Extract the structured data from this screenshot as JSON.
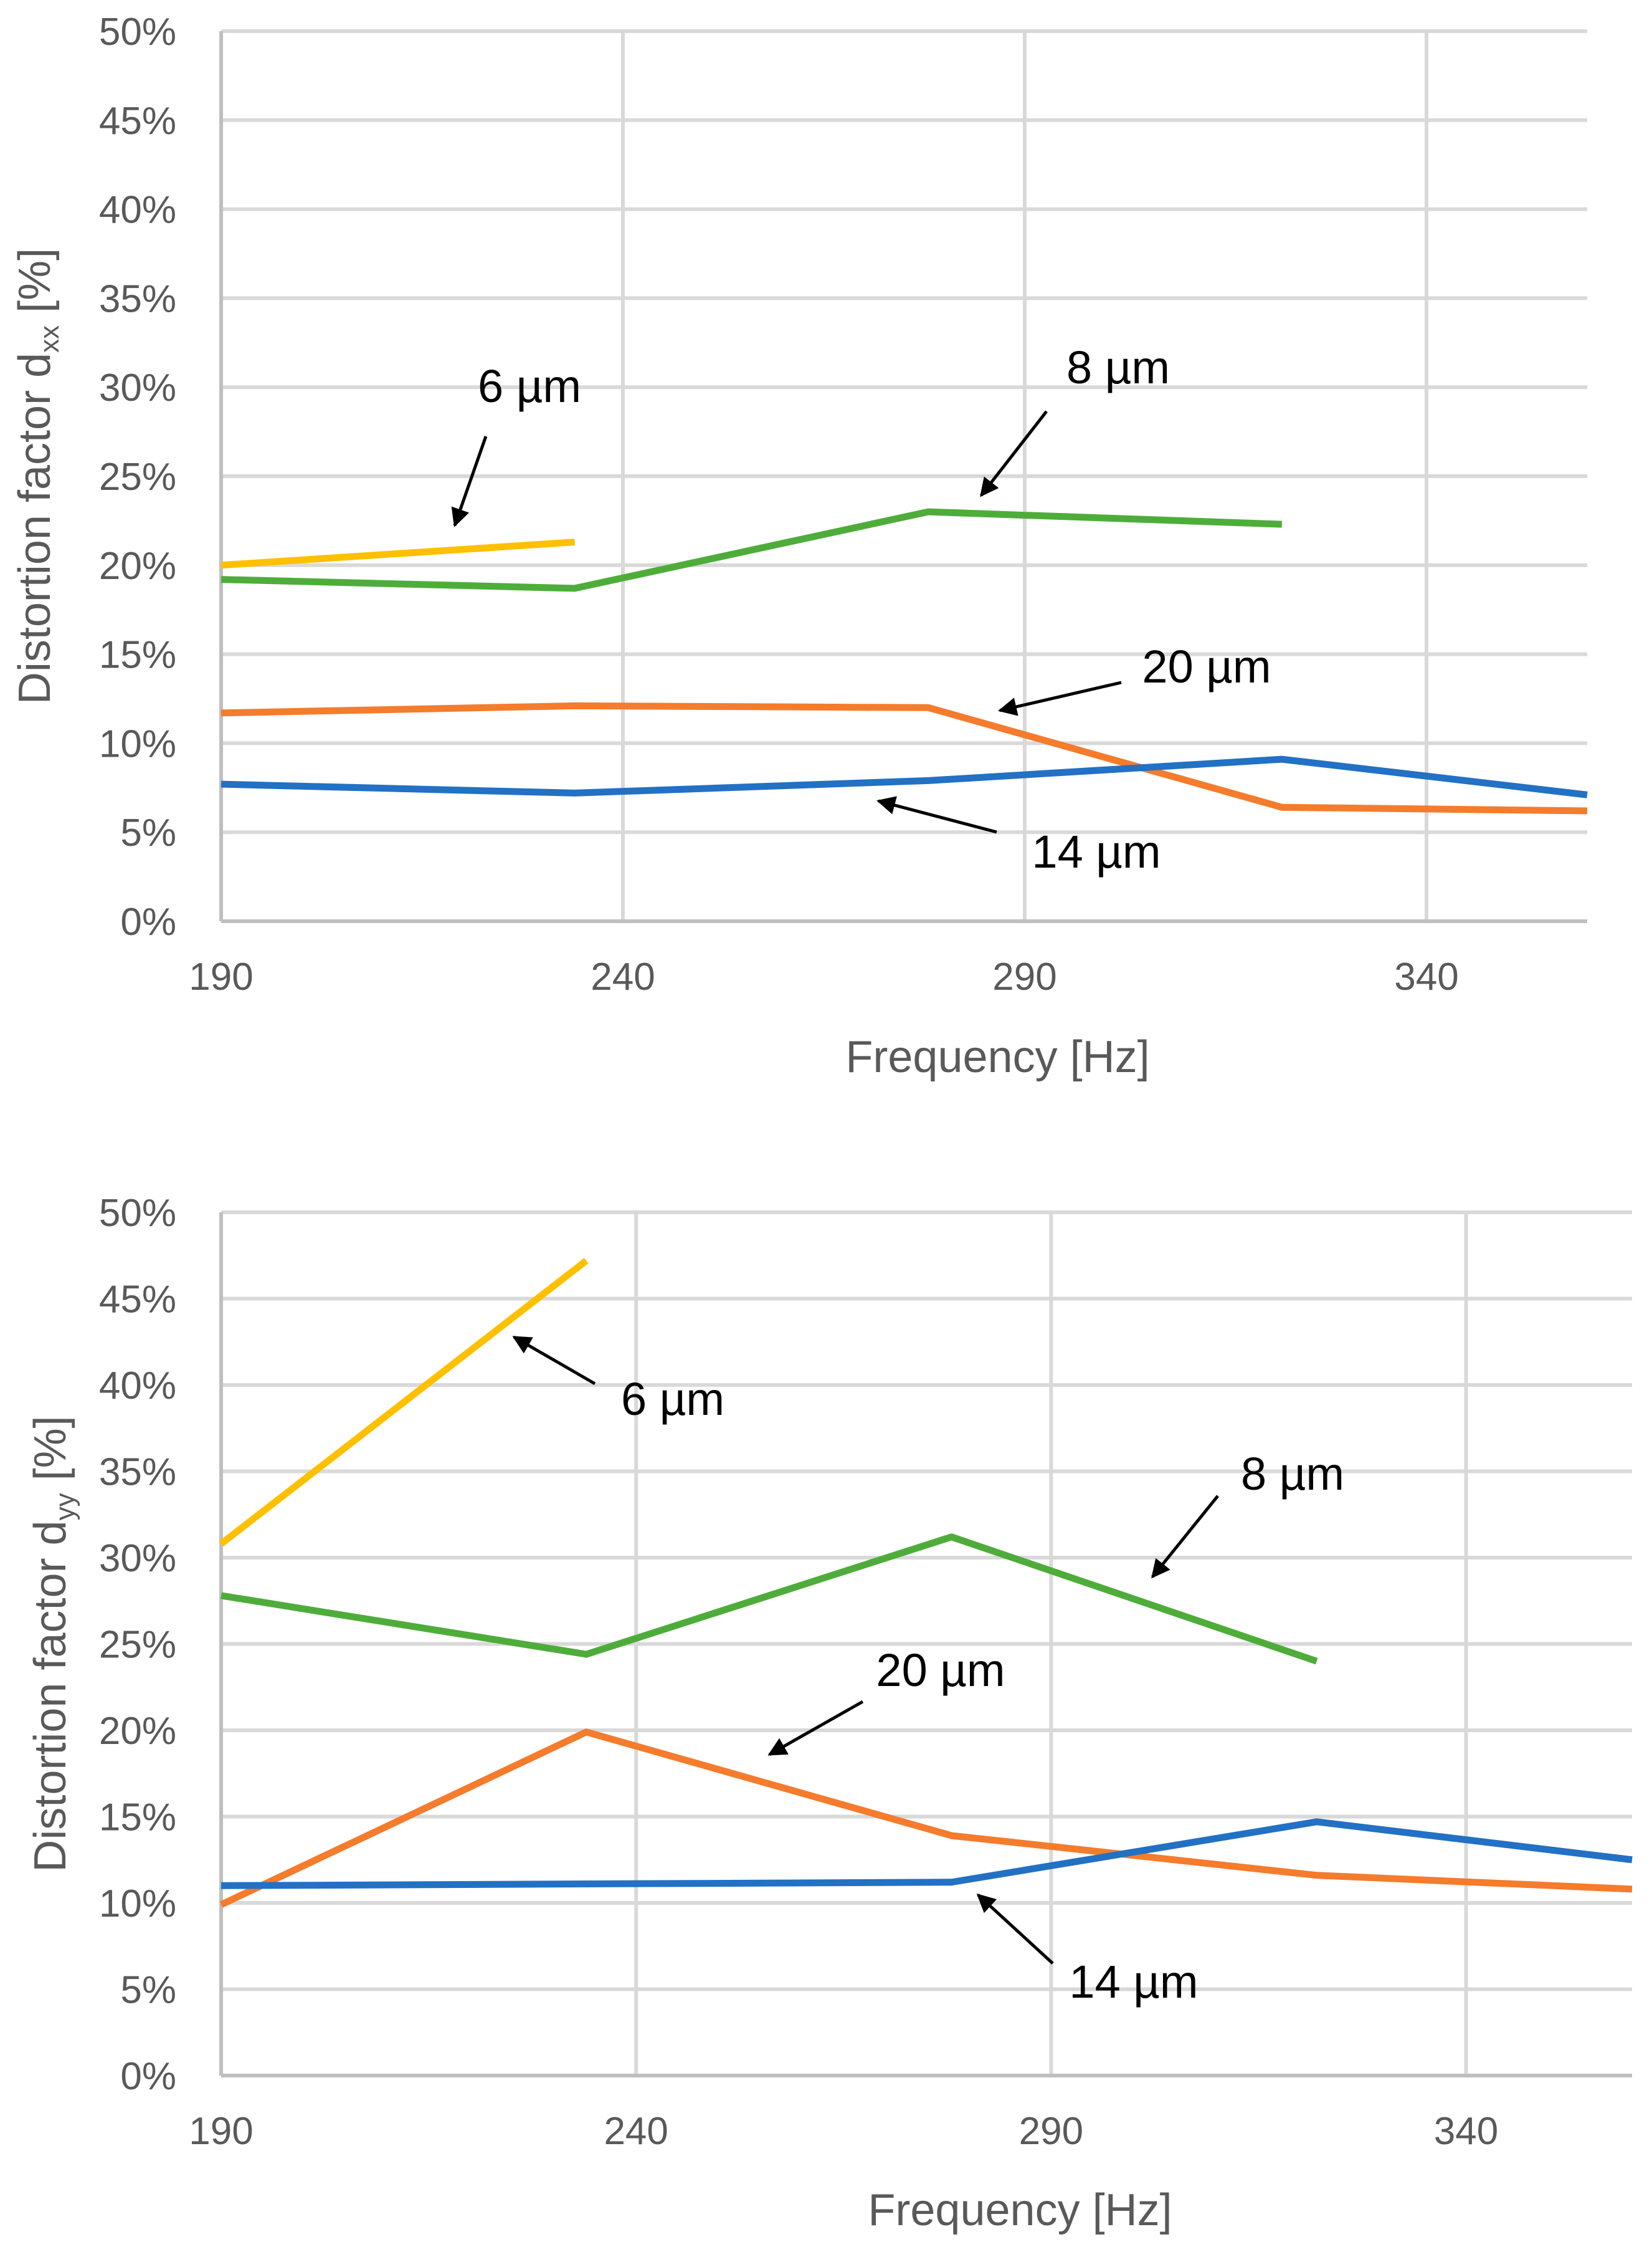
{
  "chart_data": [
    {
      "type": "line",
      "xlabel": "Frequency [Hz]",
      "ylabel": "Distortion factor d",
      "ylabel_subscript": "xx",
      "ylabel_suffix": " [%]",
      "xlim": [
        190,
        360
      ],
      "ylim": [
        0,
        50
      ],
      "xticks": [
        "190",
        "240",
        "290",
        "340"
      ],
      "yticks": [
        "0%",
        "5%",
        "10%",
        "15%",
        "20%",
        "25%",
        "30%",
        "35%",
        "40%",
        "45%",
        "50%"
      ],
      "grid": true,
      "series": [
        {
          "name": "6 µm",
          "color": "#ffc000",
          "x": [
            190,
            234
          ],
          "values": [
            20.0,
            21.3
          ]
        },
        {
          "name": "8 µm",
          "color": "#4ead3a",
          "x": [
            190,
            234,
            278,
            322
          ],
          "values": [
            19.2,
            18.7,
            23.0,
            22.3
          ]
        },
        {
          "name": "20 µm",
          "color": "#f47c2c",
          "x": [
            190,
            234,
            278,
            322,
            360
          ],
          "values": [
            11.7,
            12.1,
            12.0,
            6.4,
            6.2
          ]
        },
        {
          "name": "14 µm",
          "color": "#2271c4",
          "x": [
            190,
            234,
            278,
            322,
            360
          ],
          "values": [
            7.7,
            7.2,
            7.9,
            9.1,
            7.1
          ]
        }
      ],
      "annotations": [
        {
          "text": "6 µm",
          "series": "6 µm"
        },
        {
          "text": "8 µm",
          "series": "8 µm"
        },
        {
          "text": "20 µm",
          "series": "20 µm"
        },
        {
          "text": "14 µm",
          "series": "14 µm"
        }
      ]
    },
    {
      "type": "line",
      "xlabel": "Frequency [Hz]",
      "ylabel": "Distortion factor d",
      "ylabel_subscript": "yy",
      "ylabel_suffix": " [%]",
      "xlim": [
        190,
        360
      ],
      "ylim": [
        0,
        50
      ],
      "xticks": [
        "190",
        "240",
        "290",
        "340"
      ],
      "yticks": [
        "0%",
        "5%",
        "10%",
        "15%",
        "20%",
        "25%",
        "30%",
        "35%",
        "40%",
        "45%",
        "50%"
      ],
      "grid": true,
      "series": [
        {
          "name": "6 µm",
          "color": "#ffc000",
          "x": [
            190,
            234
          ],
          "values": [
            30.8,
            47.2
          ]
        },
        {
          "name": "8 µm",
          "color": "#4ead3a",
          "x": [
            190,
            234,
            278,
            322
          ],
          "values": [
            27.8,
            24.4,
            31.2,
            24.0
          ]
        },
        {
          "name": "20 µm",
          "color": "#f47c2c",
          "x": [
            190,
            234,
            278,
            322,
            360
          ],
          "values": [
            9.9,
            19.9,
            13.9,
            11.6,
            10.8
          ]
        },
        {
          "name": "14 µm",
          "color": "#2271c4",
          "x": [
            190,
            234,
            278,
            322,
            360
          ],
          "values": [
            11.0,
            11.1,
            11.2,
            14.7,
            12.5
          ]
        }
      ],
      "annotations": [
        {
          "text": "6 µm",
          "series": "6 µm"
        },
        {
          "text": "8 µm",
          "series": "8 µm"
        },
        {
          "text": "20 µm",
          "series": "20 µm"
        },
        {
          "text": "14 µm",
          "series": "14 µm"
        }
      ]
    }
  ]
}
